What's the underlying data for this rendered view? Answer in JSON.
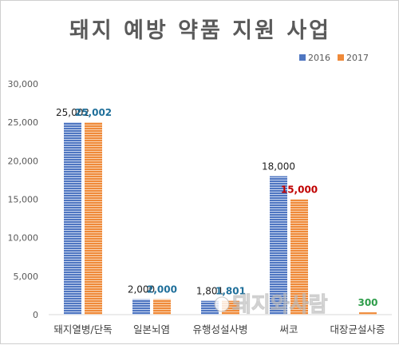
{
  "chart_data": {
    "type": "bar",
    "title": "돼지 예방 약품 지원 사업",
    "categories": [
      "돼지열병/단독",
      "일본뇌염",
      "유행성설사병",
      "써코",
      "대장균설사증"
    ],
    "series": [
      {
        "name": "2016",
        "color": "#4f76c1",
        "values": [
          25002,
          2000,
          1801,
          18000,
          null
        ],
        "labels": [
          "25,002",
          "2,000",
          "1,801",
          "18,000",
          ""
        ],
        "label_color": "#222222"
      },
      {
        "name": "2017",
        "color": "#ef8a3a",
        "values": [
          25002,
          2000,
          1801,
          15000,
          300
        ],
        "labels": [
          "25,002",
          "2,000",
          "1,801",
          "15,000",
          "300"
        ],
        "label_colors": [
          "#1f6f9a",
          "#1f6f9a",
          "#1f6f9a",
          "#c00000",
          "#2e9d4a"
        ]
      }
    ],
    "y_ticks": [
      "0",
      "5,000",
      "10,000",
      "15,000",
      "20,000",
      "25,000",
      "30,000"
    ],
    "ylim": [
      0,
      30000
    ],
    "grid": false,
    "legend": "top-right"
  },
  "watermark": "돼지와사람"
}
